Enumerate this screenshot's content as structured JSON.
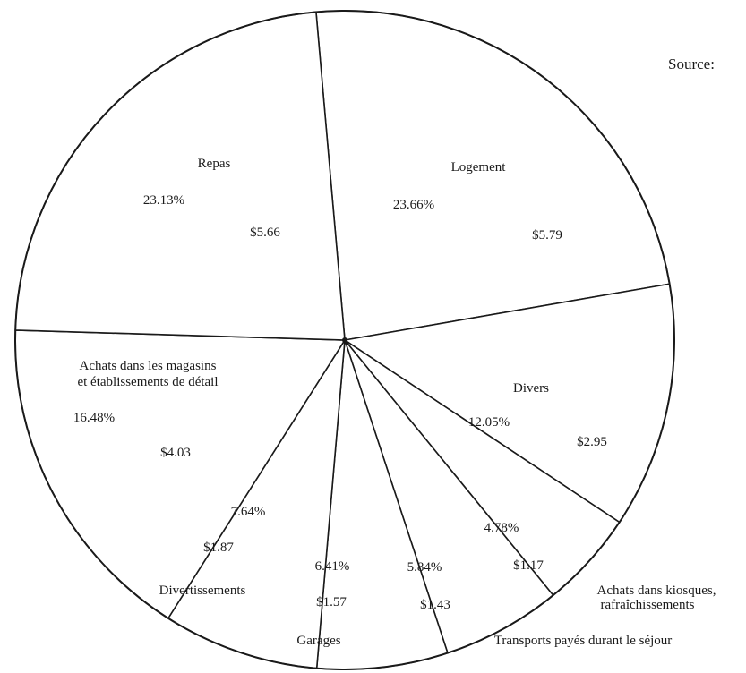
{
  "source_label": "Source:",
  "chart_data": {
    "type": "pie",
    "title": "",
    "slices": [
      {
        "label": "Logement",
        "percent": 23.66,
        "percent_text": "23.66%",
        "value": 5.79,
        "value_text": "$5.79"
      },
      {
        "label": "Divers",
        "percent": 12.05,
        "percent_text": "12.05%",
        "value": 2.95,
        "value_text": "$2.95"
      },
      {
        "label": "Achats dans kiosques, rafraîchissements",
        "label_lines": [
          "Achats dans kiosques,",
          "rafraîchissements"
        ],
        "percent": 4.78,
        "percent_text": "4.78%",
        "value": 1.17,
        "value_text": "$1.17"
      },
      {
        "label": "Transports payés durant le séjour",
        "label_lines": [
          "Transports payés durant le séjour"
        ],
        "percent": 5.84,
        "percent_text": "5.84%",
        "value": 1.43,
        "value_text": "$1.43"
      },
      {
        "label": "Garages",
        "percent": 6.41,
        "percent_text": "6.41%",
        "value": 1.57,
        "value_text": "$1.57"
      },
      {
        "label": "Divertissements",
        "percent": 7.64,
        "percent_text": "7.64%",
        "value": 1.87,
        "value_text": "$1.87"
      },
      {
        "label": "Achats dans les magasins et établissements de détail",
        "label_lines": [
          "Achats dans les magasins",
          "et établissements de détail"
        ],
        "percent": 16.48,
        "percent_text": "16.48%",
        "value": 4.03,
        "value_text": "$4.03"
      },
      {
        "label": "Repas",
        "percent": 23.13,
        "percent_text": "23.13%",
        "value": 5.66,
        "value_text": "$5.66"
      }
    ]
  }
}
